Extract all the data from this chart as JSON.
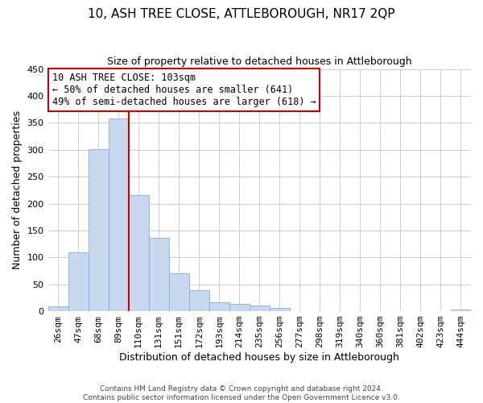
{
  "title": "10, ASH TREE CLOSE, ATTLEBOROUGH, NR17 2QP",
  "subtitle": "Size of property relative to detached houses in Attleborough",
  "xlabel": "Distribution of detached houses by size in Attleborough",
  "ylabel": "Number of detached properties",
  "bar_labels": [
    "26sqm",
    "47sqm",
    "68sqm",
    "89sqm",
    "110sqm",
    "131sqm",
    "151sqm",
    "172sqm",
    "193sqm",
    "214sqm",
    "235sqm",
    "256sqm",
    "277sqm",
    "298sqm",
    "319sqm",
    "340sqm",
    "360sqm",
    "381sqm",
    "402sqm",
    "423sqm",
    "444sqm"
  ],
  "bar_heights": [
    9,
    109,
    301,
    358,
    215,
    137,
    70,
    39,
    16,
    13,
    10,
    6,
    0,
    0,
    0,
    0,
    0,
    0,
    0,
    0,
    3
  ],
  "bar_color": "#c8d8ee",
  "bar_edge_color": "#8aadd4",
  "vline_color": "#cc0000",
  "annotation_title": "10 ASH TREE CLOSE: 103sqm",
  "annotation_line1": "← 50% of detached houses are smaller (641)",
  "annotation_line2": "49% of semi-detached houses are larger (618) →",
  "annotation_box_color": "white",
  "annotation_box_edge": "#cc0000",
  "ylim": [
    0,
    450
  ],
  "yticks": [
    0,
    50,
    100,
    150,
    200,
    250,
    300,
    350,
    400,
    450
  ],
  "footer_line1": "Contains HM Land Registry data © Crown copyright and database right 2024.",
  "footer_line2": "Contains public sector information licensed under the Open Government Licence v3.0.",
  "background_color": "#ffffff",
  "grid_color": "#cccccc",
  "title_fontsize": 11,
  "subtitle_fontsize": 9,
  "ylabel_fontsize": 9,
  "xlabel_fontsize": 9,
  "tick_fontsize": 8,
  "annotation_fontsize": 8.5,
  "footer_fontsize": 6.5
}
